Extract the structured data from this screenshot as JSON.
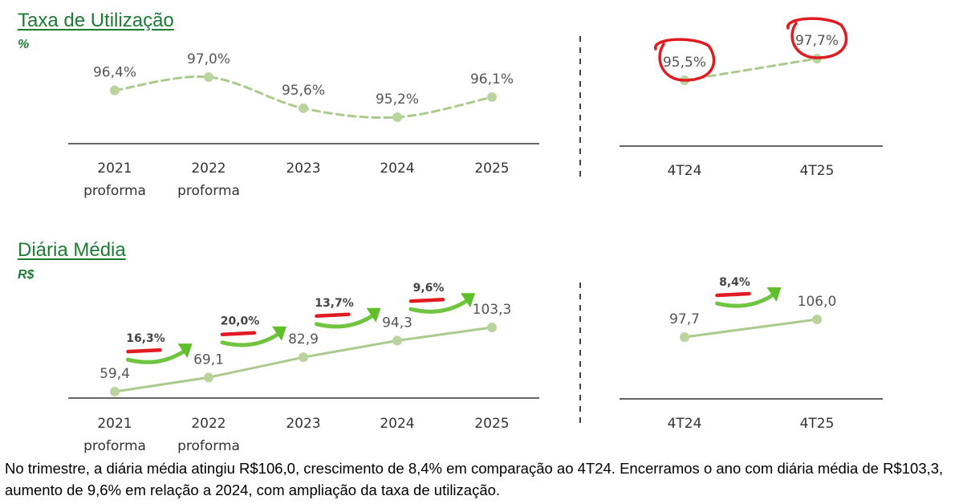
{
  "theme": {
    "title_color": "#1e7b34",
    "line_color": "#aacb8c",
    "marker_color": "#b9d49c",
    "label_color": "#555555",
    "axis_color": "#333333",
    "highlight_color": "#e11b22",
    "arrow_color": "#5fbf2a"
  },
  "sections": {
    "util": {
      "title": "Taxa de Utilização",
      "unit": "%"
    },
    "diaria": {
      "title": "Diária Média",
      "unit": "R$"
    }
  },
  "caption": "No trimestre, a diária média atingiu R$106,0, crescimento de 8,4% em comparação ao 4T24. Encerramos o ano com diária média de R$103,3, aumento de 9,6% em relação a 2024, com ampliação da taxa de utilização.",
  "chart_data": [
    {
      "type": "line",
      "title": "Taxa de Utilização",
      "ylabel": "%",
      "categories": [
        [
          "2021",
          "proforma"
        ],
        [
          "2022",
          "proforma"
        ],
        [
          "2023"
        ],
        [
          "2024"
        ],
        [
          "2025"
        ]
      ],
      "values": [
        96.4,
        97.0,
        95.6,
        95.2,
        96.1
      ],
      "labels": [
        "96,4%",
        "97,0%",
        "95,6%",
        "95,2%",
        "96,1%"
      ],
      "line_style": "dashed"
    },
    {
      "type": "line",
      "title": "Taxa de Utilização",
      "categories": [
        [
          "4T24"
        ],
        [
          "4T25"
        ]
      ],
      "values": [
        95.5,
        97.7
      ],
      "labels": [
        "95,5%",
        "97,7%"
      ],
      "line_style": "dashed",
      "circled": [
        "95,5%",
        "97,7%"
      ]
    },
    {
      "type": "line",
      "title": "Diária Média",
      "ylabel": "R$",
      "categories": [
        [
          "2021",
          "proforma"
        ],
        [
          "2022",
          "proforma"
        ],
        [
          "2023"
        ],
        [
          "2024"
        ],
        [
          "2025"
        ]
      ],
      "values": [
        59.4,
        69.1,
        82.9,
        94.3,
        103.3
      ],
      "labels": [
        "59,4",
        "69,1",
        "82,9",
        "94,3",
        "103,3"
      ],
      "line_style": "solid",
      "growth": [
        "16,3%",
        "20,0%",
        "13,7%",
        "9,6%"
      ]
    },
    {
      "type": "line",
      "title": "Diária Média",
      "categories": [
        [
          "4T24"
        ],
        [
          "4T25"
        ]
      ],
      "values": [
        97.7,
        106.0
      ],
      "labels": [
        "97,7",
        "106,0"
      ],
      "line_style": "solid",
      "growth": [
        "8,4%"
      ]
    }
  ]
}
